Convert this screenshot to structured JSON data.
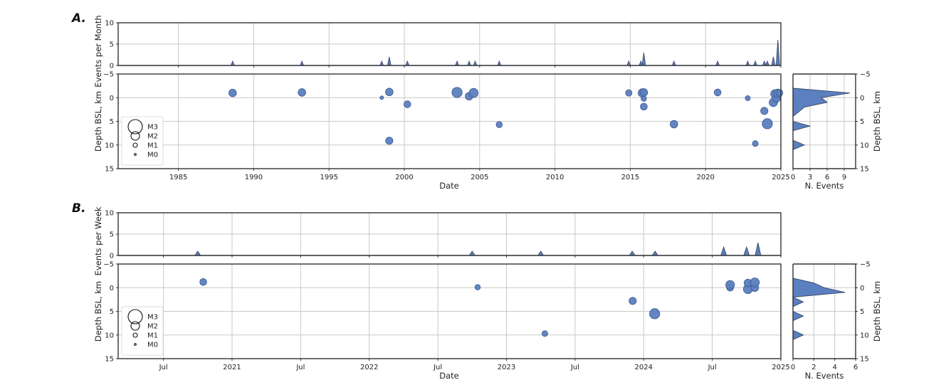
{
  "panels": {
    "A": {
      "label": "A.",
      "top_ylabel": "Events per Month",
      "scatter_ylabel": "Depth BSL, km",
      "xlabel": "Date",
      "hist_xlabel": "N. Events",
      "hist_ylabel": "Depth BSL, km"
    },
    "B": {
      "label": "B.",
      "top_ylabel": "Events per Week",
      "scatter_ylabel": "Depth BSL, km",
      "xlabel": "Date",
      "hist_xlabel": "N. Events",
      "hist_ylabel": "Depth BSL, km"
    }
  },
  "legend": {
    "items": [
      {
        "label": "M3",
        "r": 10
      },
      {
        "label": "M2",
        "r": 6
      },
      {
        "label": "M1",
        "r": 3
      },
      {
        "label": "M0",
        "r": 1.3
      }
    ]
  },
  "colors": {
    "marker": "#5b7fbf",
    "marker_edge": "#3b5a94",
    "area_edge": "#2e3f5c",
    "grid": "#c8c8c8"
  },
  "chart_data": [
    {
      "id": "A-rate",
      "type": "area",
      "title": "",
      "xlabel": "",
      "ylabel": "Events per Month",
      "xlim": [
        1981.0,
        2025.0
      ],
      "ylim": [
        0,
        10
      ],
      "yticks": [
        0,
        5,
        10
      ],
      "grid": true,
      "x": [
        1988.6,
        1993.2,
        1998.5,
        1999.0,
        2000.2,
        2003.5,
        2004.3,
        2004.7,
        2006.3,
        2014.9,
        2015.7,
        2015.9,
        2017.9,
        2020.8,
        2022.8,
        2023.3,
        2023.9,
        2024.1,
        2024.5,
        2024.8
      ],
      "values": [
        1,
        1,
        1,
        2,
        1,
        1,
        1,
        1,
        1,
        1,
        1,
        3,
        1,
        1,
        1,
        1,
        1,
        1,
        2,
        6
      ]
    },
    {
      "id": "A-depth",
      "type": "scatter",
      "xlabel": "Date",
      "ylabel": "Depth BSL, km",
      "xlim": [
        1981.0,
        2025.0
      ],
      "ylim": [
        15,
        -5
      ],
      "xticks": [
        "1985",
        "1990",
        "1995",
        "2000",
        "2005",
        "2010",
        "2015",
        "2020",
        "2025"
      ],
      "yticks": [
        -5,
        0,
        5,
        10,
        15
      ],
      "grid": true,
      "legend_position": "lower left",
      "points": [
        {
          "x": 1988.6,
          "depth": -1.0,
          "mag": 1.3
        },
        {
          "x": 1993.2,
          "depth": -1.1,
          "mag": 1.3
        },
        {
          "x": 1998.5,
          "depth": 0.0,
          "mag": 0.2
        },
        {
          "x": 1999.0,
          "depth": -1.2,
          "mag": 1.3
        },
        {
          "x": 1999.0,
          "depth": 9.1,
          "mag": 1.2
        },
        {
          "x": 2000.2,
          "depth": 1.4,
          "mag": 1.1
        },
        {
          "x": 2003.5,
          "depth": -1.1,
          "mag": 2.0
        },
        {
          "x": 2004.3,
          "depth": -0.3,
          "mag": 1.3
        },
        {
          "x": 2004.6,
          "depth": -1.0,
          "mag": 1.7
        },
        {
          "x": 2006.3,
          "depth": 5.7,
          "mag": 0.9
        },
        {
          "x": 2014.9,
          "depth": -1.0,
          "mag": 1.0
        },
        {
          "x": 2015.8,
          "depth": -1.0,
          "mag": 1.5
        },
        {
          "x": 2015.9,
          "depth": -1.1,
          "mag": 1.3
        },
        {
          "x": 2015.9,
          "depth": 0.2,
          "mag": 0.7
        },
        {
          "x": 2015.9,
          "depth": 1.9,
          "mag": 1.1
        },
        {
          "x": 2017.9,
          "depth": 5.6,
          "mag": 1.3
        },
        {
          "x": 2020.8,
          "depth": -1.1,
          "mag": 1.1
        },
        {
          "x": 2022.8,
          "depth": 0.1,
          "mag": 0.6
        },
        {
          "x": 2023.3,
          "depth": 9.7,
          "mag": 0.8
        },
        {
          "x": 2023.9,
          "depth": 2.8,
          "mag": 1.2
        },
        {
          "x": 2024.1,
          "depth": 5.5,
          "mag": 2.0
        },
        {
          "x": 2024.5,
          "depth": 1.0,
          "mag": 1.5
        },
        {
          "x": 2024.6,
          "depth": -0.8,
          "mag": 1.5
        },
        {
          "x": 2024.7,
          "depth": 0.1,
          "mag": 1.5
        },
        {
          "x": 2024.8,
          "depth": -0.9,
          "mag": 1.6
        },
        {
          "x": 2024.9,
          "depth": -1.0,
          "mag": 1.1
        }
      ]
    },
    {
      "id": "A-hist",
      "type": "area",
      "orientation": "horizontal",
      "xlabel": "N. Events",
      "ylabel": "Depth BSL, km",
      "xlim": [
        0,
        11
      ],
      "xticks": [
        0,
        3,
        6,
        9
      ],
      "ylim": [
        15,
        -5
      ],
      "yticks": [
        -5,
        0,
        5,
        10,
        15
      ],
      "depth": [
        -2,
        -1,
        0,
        1,
        2,
        3,
        4,
        5,
        6,
        7,
        8,
        9,
        10,
        11
      ],
      "counts": [
        0,
        10,
        5,
        6,
        2,
        1,
        0,
        0,
        3,
        0,
        0,
        0,
        2,
        0
      ]
    },
    {
      "id": "B-rate",
      "type": "area",
      "ylabel": "Events per Week",
      "xlim": [
        "2020-03",
        "2025-01"
      ],
      "ylim": [
        0,
        10
      ],
      "yticks": [
        0,
        5,
        10
      ],
      "grid": true,
      "x": [
        "2020-10",
        "2022-10",
        "2023-04",
        "2023-12",
        "2024-02",
        "2024-08",
        "2024-10",
        "2024-11"
      ],
      "values": [
        1,
        1,
        1,
        1,
        1,
        2,
        2,
        3
      ]
    },
    {
      "id": "B-depth",
      "type": "scatter",
      "xlabel": "Date",
      "ylabel": "Depth BSL, km",
      "xlim": [
        "2020-03",
        "2025-01"
      ],
      "ylim": [
        15,
        -5
      ],
      "xticks": [
        "Jul",
        "2021",
        "Jul",
        "2022",
        "Jul",
        "2023",
        "Jul",
        "2024",
        "Jul",
        "2025"
      ],
      "yticks": [
        -5,
        0,
        5,
        10,
        15
      ],
      "grid": true,
      "legend_position": "lower left",
      "points": [
        {
          "x": 2020.79,
          "depth": -1.2,
          "mag": 1.1
        },
        {
          "x": 2022.79,
          "depth": -0.1,
          "mag": 0.7
        },
        {
          "x": 2023.28,
          "depth": 9.7,
          "mag": 0.8
        },
        {
          "x": 2023.92,
          "depth": 2.8,
          "mag": 1.2
        },
        {
          "x": 2024.08,
          "depth": 5.5,
          "mag": 2.0
        },
        {
          "x": 2024.63,
          "depth": 0.0,
          "mag": 1.1
        },
        {
          "x": 2024.63,
          "depth": -0.6,
          "mag": 1.6
        },
        {
          "x": 2024.76,
          "depth": 0.3,
          "mag": 1.7
        },
        {
          "x": 2024.76,
          "depth": -1.0,
          "mag": 1.3
        },
        {
          "x": 2024.81,
          "depth": 0.0,
          "mag": 1.3
        },
        {
          "x": 2024.81,
          "depth": -1.1,
          "mag": 1.7
        }
      ]
    },
    {
      "id": "B-hist",
      "type": "area",
      "orientation": "horizontal",
      "xlabel": "N. Events",
      "ylabel": "Depth BSL, km",
      "xlim": [
        0,
        6
      ],
      "xticks": [
        0,
        2,
        4,
        6
      ],
      "ylim": [
        15,
        -5
      ],
      "yticks": [
        -5,
        0,
        5,
        10,
        15
      ],
      "depth": [
        -2,
        -1,
        0,
        1,
        2,
        3,
        4,
        5,
        6,
        7,
        9,
        10,
        11
      ],
      "counts": [
        0,
        2,
        3,
        5,
        0,
        1,
        0,
        0,
        1,
        0,
        0,
        1,
        0
      ]
    }
  ]
}
